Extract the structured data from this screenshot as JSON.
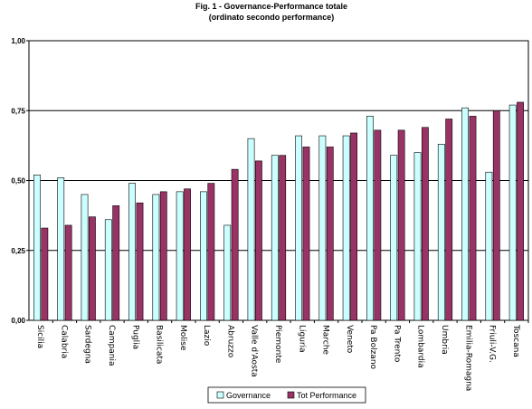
{
  "chart_data": {
    "type": "bar",
    "title": "Fig. 1 - Governance-Performance totale",
    "subtitle": "(ordinato secondo performance)",
    "xlabel": "",
    "ylabel": "",
    "ylim": [
      0,
      1
    ],
    "yticks": [
      "0,00",
      "0,25",
      "0,50",
      "0,75",
      "1,00"
    ],
    "grid": true,
    "legend_position": "bottom",
    "categories": [
      "Sicilia",
      "Calabria",
      "Sardegna",
      "Campania",
      "Puglia",
      "Basilicata",
      "Molise",
      "Lazio",
      "Abruzzo",
      "Valle d'Aosta",
      "Piemonte",
      "Liguria",
      "Marche",
      "Veneto",
      "Pa Bolzano",
      "Pa Trento",
      "Lombardia",
      "Umbria",
      "Emilia-Romagna",
      "Friuli-V.G.",
      "Toscana"
    ],
    "series": [
      {
        "name": "Governance",
        "color": "#ccffff",
        "values": [
          0.52,
          0.51,
          0.45,
          0.36,
          0.49,
          0.45,
          0.46,
          0.46,
          0.34,
          0.65,
          0.59,
          0.66,
          0.66,
          0.66,
          0.73,
          0.59,
          0.6,
          0.63,
          0.76,
          0.53,
          0.77
        ]
      },
      {
        "name": "Tot Performance",
        "color": "#993366",
        "values": [
          0.33,
          0.34,
          0.37,
          0.41,
          0.42,
          0.46,
          0.47,
          0.49,
          0.54,
          0.57,
          0.59,
          0.62,
          0.62,
          0.67,
          0.68,
          0.68,
          0.69,
          0.72,
          0.73,
          0.75,
          0.78
        ]
      }
    ]
  }
}
